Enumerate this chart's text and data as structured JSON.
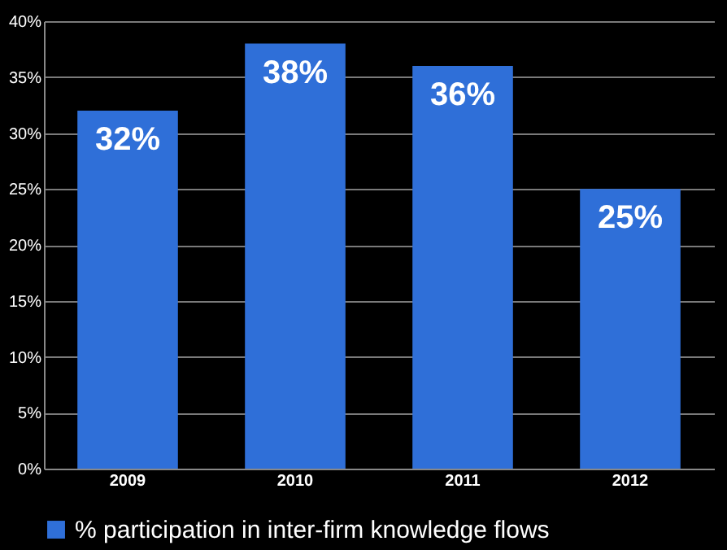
{
  "chart_data": {
    "type": "bar",
    "categories": [
      "2009",
      "2010",
      "2011",
      "2012"
    ],
    "series": [
      {
        "name": "% participation in inter-firm knowledge flows",
        "color": "#2f6fd8",
        "values": [
          32,
          38,
          36,
          25
        ]
      }
    ],
    "value_labels": [
      "32%",
      "38%",
      "36%",
      "25%"
    ],
    "ylim": [
      0,
      40
    ],
    "yticks": [
      {
        "value": 0,
        "label": "0%"
      },
      {
        "value": 5,
        "label": "5%"
      },
      {
        "value": 10,
        "label": "10%"
      },
      {
        "value": 15,
        "label": "15%"
      },
      {
        "value": 20,
        "label": "20%"
      },
      {
        "value": 25,
        "label": "25%"
      },
      {
        "value": 30,
        "label": "30%"
      },
      {
        "value": 35,
        "label": "35%"
      },
      {
        "value": 40,
        "label": "40%"
      }
    ],
    "grid": "y",
    "legend": "bottom"
  }
}
